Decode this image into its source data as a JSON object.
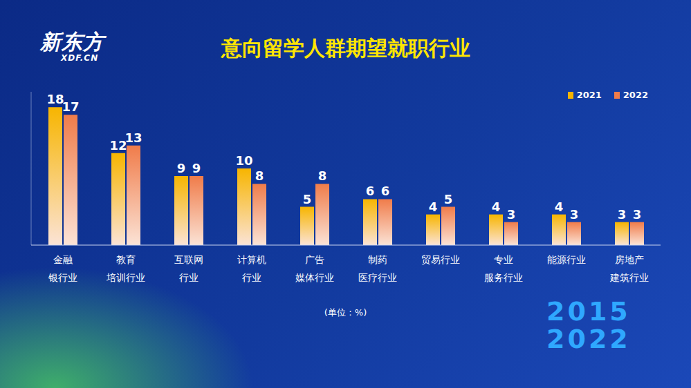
{
  "chart_data": {
    "type": "bar",
    "title": "意向留学人群期望就职行业",
    "categories": [
      "金融\n银行业",
      "教育\n培训行业",
      "互联网\n行业",
      "计算机\n行业",
      "广告\n媒体行业",
      "制药\n医疗行业",
      "贸易行业",
      "专业\n服务行业",
      "能源行业",
      "房地产\n建筑行业"
    ],
    "series": [
      {
        "name": "2021",
        "color": "#f7b500",
        "values": [
          18,
          12,
          9,
          10,
          5,
          6,
          4,
          4,
          4,
          3
        ]
      },
      {
        "name": "2022",
        "color": "#f07c4a",
        "values": [
          17,
          13,
          9,
          8,
          8,
          6,
          5,
          3,
          3,
          3
        ]
      }
    ],
    "ylim": [
      0,
      20
    ],
    "data_labels": true,
    "tick_labels": "x",
    "legend": "top-right",
    "annotations": [
      "(单位：%)"
    ]
  },
  "logo": {
    "name": "新东方",
    "site": "XDF.CN"
  },
  "badge": [
    "2015",
    "2022"
  ]
}
